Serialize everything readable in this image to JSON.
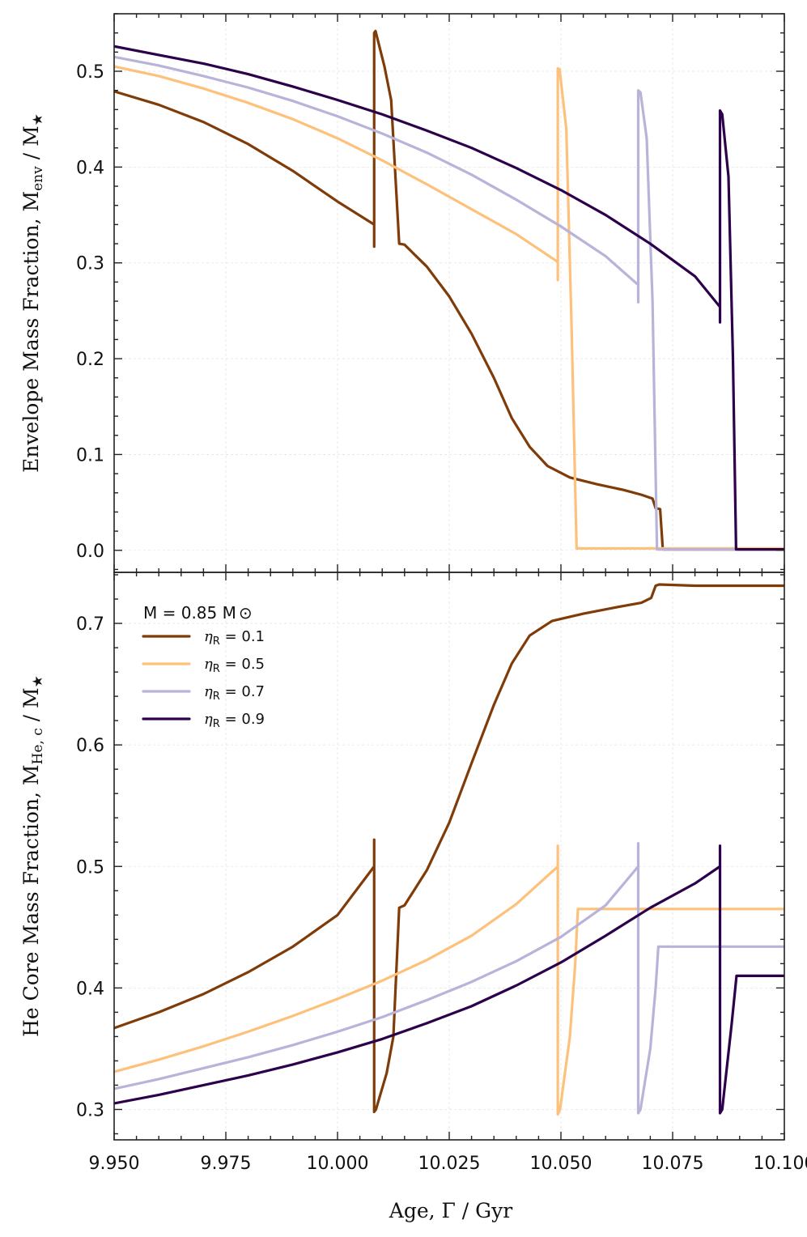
{
  "colors": {
    "eta_0.1": "#7f3b08",
    "eta_0.5": "#fdc17b",
    "eta_0.7": "#b8b3d9",
    "eta_0.9": "#2d004b"
  },
  "chart_data": [
    {
      "type": "line",
      "panel": "top",
      "xlabel": "Age, Γ / Gyr",
      "ylabel": "Envelope Mass Fraction, M_env / M_★",
      "ylabel_parts": {
        "main": "Envelope Mass Fraction, M",
        "sub": "env",
        "tail": " / M",
        "star": "★"
      },
      "xlim": [
        9.95,
        10.1
      ],
      "ylim": [
        -0.023,
        0.56
      ],
      "xticks": [
        9.95,
        9.975,
        10.0,
        10.025,
        10.05,
        10.075,
        10.1
      ],
      "yticks": [
        0.0,
        0.1,
        0.2,
        0.3,
        0.4,
        0.5
      ],
      "ytick_labels": [
        "0.0",
        "0.1",
        "0.2",
        "0.3",
        "0.4",
        "0.5"
      ],
      "series": [
        {
          "name": "η_R = 0.1",
          "color_key": "eta_0.1",
          "points": [
            [
              9.95,
              0.479
            ],
            [
              9.96,
              0.465
            ],
            [
              9.97,
              0.447
            ],
            [
              9.98,
              0.424
            ],
            [
              9.99,
              0.396
            ],
            [
              10.0,
              0.364
            ],
            [
              10.0082,
              0.34
            ],
            [
              10.0082,
              0.317
            ],
            [
              10.0082,
              0.54
            ],
            [
              10.0085,
              0.542
            ],
            [
              10.0105,
              0.505
            ],
            [
              10.012,
              0.47
            ],
            [
              10.0138,
              0.32
            ],
            [
              10.015,
              0.319
            ],
            [
              10.02,
              0.296
            ],
            [
              10.025,
              0.265
            ],
            [
              10.03,
              0.226
            ],
            [
              10.035,
              0.18
            ],
            [
              10.039,
              0.138
            ],
            [
              10.043,
              0.108
            ],
            [
              10.047,
              0.088
            ],
            [
              10.052,
              0.076
            ],
            [
              10.058,
              0.069
            ],
            [
              10.064,
              0.063
            ],
            [
              10.068,
              0.058
            ],
            [
              10.0705,
              0.054
            ],
            [
              10.0712,
              0.044
            ],
            [
              10.0722,
              0.043
            ],
            [
              10.0728,
              0.001
            ],
            [
              10.08,
              0.001
            ],
            [
              10.1,
              0.001
            ]
          ]
        },
        {
          "name": "η_R = 0.5",
          "color_key": "eta_0.5",
          "points": [
            [
              9.95,
              0.505
            ],
            [
              9.96,
              0.495
            ],
            [
              9.97,
              0.482
            ],
            [
              9.98,
              0.467
            ],
            [
              9.99,
              0.45
            ],
            [
              10.0,
              0.43
            ],
            [
              10.01,
              0.407
            ],
            [
              10.02,
              0.382
            ],
            [
              10.03,
              0.356
            ],
            [
              10.04,
              0.33
            ],
            [
              10.0493,
              0.301
            ],
            [
              10.0493,
              0.282
            ],
            [
              10.0493,
              0.503
            ],
            [
              10.0497,
              0.502
            ],
            [
              10.0512,
              0.44
            ],
            [
              10.0524,
              0.23
            ],
            [
              10.0535,
              0.002
            ],
            [
              10.06,
              0.002
            ],
            [
              10.1,
              0.002
            ]
          ]
        },
        {
          "name": "η_R = 0.7",
          "color_key": "eta_0.7",
          "points": [
            [
              9.95,
              0.515
            ],
            [
              9.96,
              0.506
            ],
            [
              9.97,
              0.495
            ],
            [
              9.98,
              0.483
            ],
            [
              9.99,
              0.469
            ],
            [
              10.0,
              0.453
            ],
            [
              10.01,
              0.435
            ],
            [
              10.02,
              0.415
            ],
            [
              10.03,
              0.392
            ],
            [
              10.04,
              0.366
            ],
            [
              10.05,
              0.338
            ],
            [
              10.06,
              0.307
            ],
            [
              10.0673,
              0.277
            ],
            [
              10.0673,
              0.259
            ],
            [
              10.0673,
              0.48
            ],
            [
              10.0678,
              0.478
            ],
            [
              10.0692,
              0.43
            ],
            [
              10.0705,
              0.26
            ],
            [
              10.0715,
              0.001
            ],
            [
              10.08,
              0.001
            ],
            [
              10.1,
              0.001
            ]
          ]
        },
        {
          "name": "η_R = 0.9",
          "color_key": "eta_0.9",
          "points": [
            [
              9.95,
              0.526
            ],
            [
              9.96,
              0.517
            ],
            [
              9.97,
              0.508
            ],
            [
              9.98,
              0.497
            ],
            [
              9.99,
              0.484
            ],
            [
              10.0,
              0.47
            ],
            [
              10.01,
              0.455
            ],
            [
              10.02,
              0.438
            ],
            [
              10.03,
              0.42
            ],
            [
              10.04,
              0.399
            ],
            [
              10.05,
              0.376
            ],
            [
              10.06,
              0.35
            ],
            [
              10.07,
              0.32
            ],
            [
              10.08,
              0.286
            ],
            [
              10.0856,
              0.254
            ],
            [
              10.0856,
              0.238
            ],
            [
              10.0856,
              0.459
            ],
            [
              10.0861,
              0.455
            ],
            [
              10.0875,
              0.39
            ],
            [
              10.0885,
              0.2
            ],
            [
              10.0892,
              0.001
            ],
            [
              10.095,
              0.001
            ],
            [
              10.1,
              0.001
            ]
          ]
        }
      ]
    },
    {
      "type": "line",
      "panel": "bottom",
      "xlabel": "Age, Γ / Gyr",
      "ylabel": "He Core Mass Fraction, M_He,c / M_★",
      "ylabel_parts": {
        "main": "He Core Mass Fraction, M",
        "sub": "He, c",
        "tail": " / M",
        "star": "★"
      },
      "xlim": [
        9.95,
        10.1
      ],
      "ylim": [
        0.275,
        0.742
      ],
      "xticks": [
        9.95,
        9.975,
        10.0,
        10.025,
        10.05,
        10.075,
        10.1
      ],
      "xtick_labels": [
        "9.950",
        "9.975",
        "10.000",
        "10.025",
        "10.050",
        "10.075",
        "10.100"
      ],
      "yticks": [
        0.3,
        0.4,
        0.5,
        0.6,
        0.7
      ],
      "ytick_labels": [
        "0.3",
        "0.4",
        "0.5",
        "0.6",
        "0.7"
      ],
      "legend": {
        "title": "M = 0.85 M⊙",
        "title_parts": {
          "main": "M = 0.85 M",
          "sun": "⊙"
        },
        "position": "top-left",
        "entries": [
          {
            "eta": "η",
            "sub": "R",
            "value": " = 0.1",
            "color_key": "eta_0.1"
          },
          {
            "eta": "η",
            "sub": "R",
            "value": " = 0.5",
            "color_key": "eta_0.5"
          },
          {
            "eta": "η",
            "sub": "R",
            "value": " = 0.7",
            "color_key": "eta_0.7"
          },
          {
            "eta": "η",
            "sub": "R",
            "value": " = 0.9",
            "color_key": "eta_0.9"
          }
        ]
      },
      "series": [
        {
          "name": "η_R = 0.1",
          "color_key": "eta_0.1",
          "points": [
            [
              9.95,
              0.367
            ],
            [
              9.96,
              0.38
            ],
            [
              9.97,
              0.395
            ],
            [
              9.98,
              0.413
            ],
            [
              9.99,
              0.434
            ],
            [
              10.0,
              0.46
            ],
            [
              10.0082,
              0.5
            ],
            [
              10.0082,
              0.522
            ],
            [
              10.0082,
              0.298
            ],
            [
              10.0086,
              0.3
            ],
            [
              10.011,
              0.33
            ],
            [
              10.0125,
              0.36
            ],
            [
              10.0138,
              0.466
            ],
            [
              10.015,
              0.468
            ],
            [
              10.02,
              0.497
            ],
            [
              10.025,
              0.536
            ],
            [
              10.03,
              0.585
            ],
            [
              10.035,
              0.633
            ],
            [
              10.039,
              0.667
            ],
            [
              10.043,
              0.69
            ],
            [
              10.048,
              0.702
            ],
            [
              10.055,
              0.708
            ],
            [
              10.062,
              0.713
            ],
            [
              10.068,
              0.717
            ],
            [
              10.0702,
              0.721
            ],
            [
              10.0712,
              0.731
            ],
            [
              10.072,
              0.732
            ],
            [
              10.08,
              0.731
            ],
            [
              10.1,
              0.731
            ]
          ]
        },
        {
          "name": "η_R = 0.5",
          "color_key": "eta_0.5",
          "points": [
            [
              9.95,
              0.331
            ],
            [
              9.96,
              0.341
            ],
            [
              9.97,
              0.352
            ],
            [
              9.98,
              0.364
            ],
            [
              9.99,
              0.377
            ],
            [
              10.0,
              0.391
            ],
            [
              10.01,
              0.406
            ],
            [
              10.02,
              0.423
            ],
            [
              10.03,
              0.443
            ],
            [
              10.04,
              0.469
            ],
            [
              10.0493,
              0.5
            ],
            [
              10.0493,
              0.517
            ],
            [
              10.0493,
              0.296
            ],
            [
              10.0498,
              0.3
            ],
            [
              10.052,
              0.36
            ],
            [
              10.0532,
              0.42
            ],
            [
              10.0538,
              0.465
            ],
            [
              10.06,
              0.465
            ],
            [
              10.1,
              0.465
            ]
          ]
        },
        {
          "name": "η_R = 0.7",
          "color_key": "eta_0.7",
          "points": [
            [
              9.95,
              0.317
            ],
            [
              9.96,
              0.325
            ],
            [
              9.97,
              0.334
            ],
            [
              9.98,
              0.343
            ],
            [
              9.99,
              0.353
            ],
            [
              10.0,
              0.364
            ],
            [
              10.01,
              0.376
            ],
            [
              10.02,
              0.39
            ],
            [
              10.03,
              0.405
            ],
            [
              10.04,
              0.422
            ],
            [
              10.05,
              0.442
            ],
            [
              10.06,
              0.468
            ],
            [
              10.0673,
              0.5
            ],
            [
              10.0673,
              0.519
            ],
            [
              10.0673,
              0.297
            ],
            [
              10.0678,
              0.3
            ],
            [
              10.07,
              0.35
            ],
            [
              10.0712,
              0.4
            ],
            [
              10.0718,
              0.434
            ],
            [
              10.08,
              0.434
            ],
            [
              10.1,
              0.434
            ]
          ]
        },
        {
          "name": "η_R = 0.9",
          "color_key": "eta_0.9",
          "points": [
            [
              9.95,
              0.305
            ],
            [
              9.96,
              0.312
            ],
            [
              9.97,
              0.32
            ],
            [
              9.98,
              0.328
            ],
            [
              9.99,
              0.337
            ],
            [
              10.0,
              0.347
            ],
            [
              10.01,
              0.358
            ],
            [
              10.02,
              0.371
            ],
            [
              10.03,
              0.385
            ],
            [
              10.04,
              0.402
            ],
            [
              10.05,
              0.421
            ],
            [
              10.06,
              0.443
            ],
            [
              10.07,
              0.466
            ],
            [
              10.08,
              0.486
            ],
            [
              10.0856,
              0.5
            ],
            [
              10.0856,
              0.517
            ],
            [
              10.0856,
              0.297
            ],
            [
              10.0861,
              0.3
            ],
            [
              10.0882,
              0.37
            ],
            [
              10.0893,
              0.41
            ],
            [
              10.095,
              0.41
            ],
            [
              10.1,
              0.41
            ]
          ]
        }
      ]
    }
  ]
}
